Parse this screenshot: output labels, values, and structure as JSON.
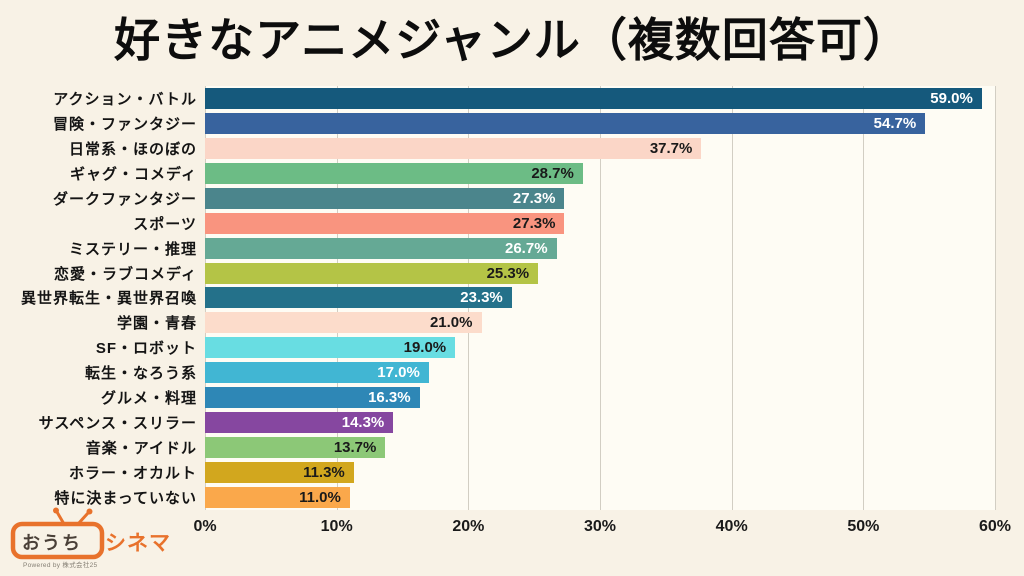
{
  "page": {
    "background": "#f8f2e6",
    "plot_background": "#fefcf4",
    "gridline_color": "#d2cec3"
  },
  "chart_data": {
    "type": "bar",
    "orientation": "horizontal",
    "title": "好きなアニメジャンル（複数回答可）",
    "categories": [
      "アクション・バトル",
      "冒険・ファンタジー",
      "日常系・ほのぼの",
      "ギャグ・コメディ",
      "ダークファンタジー",
      "スポーツ",
      "ミステリー・推理",
      "恋愛・ラブコメディ",
      "異世界転生・異世界召喚",
      "学園・青春",
      "SF・ロボット",
      "転生・なろう系",
      "グルメ・料理",
      "サスペンス・スリラー",
      "音楽・アイドル",
      "ホラー・オカルト",
      "特に決まっていない"
    ],
    "values": [
      59.0,
      54.7,
      37.7,
      28.7,
      27.3,
      27.3,
      26.7,
      25.3,
      23.3,
      21.0,
      19.0,
      17.0,
      16.3,
      14.3,
      13.7,
      11.3,
      11.0
    ],
    "value_labels": [
      "59.0%",
      "54.7%",
      "37.7%",
      "28.7%",
      "27.3%",
      "27.3%",
      "26.7%",
      "25.3%",
      "23.3%",
      "21.0%",
      "19.0%",
      "17.0%",
      "16.3%",
      "14.3%",
      "13.7%",
      "11.3%",
      "11.0%"
    ],
    "bar_colors": [
      "#15597c",
      "#38639e",
      "#fbd6c7",
      "#6cbc85",
      "#4b858c",
      "#f9947f",
      "#65a995",
      "#b4c446",
      "#24718a",
      "#fcdccb",
      "#68dde2",
      "#41b6d3",
      "#2e87b6",
      "#8647a0",
      "#8cc877",
      "#d2a71e",
      "#faa84b"
    ],
    "value_label_colors": [
      "#ffffff",
      "#ffffff",
      "#1a1a1a",
      "#1a1a1a",
      "#ffffff",
      "#1a1a1a",
      "#ffffff",
      "#1a1a1a",
      "#ffffff",
      "#1a1a1a",
      "#1a1a1a",
      "#ffffff",
      "#ffffff",
      "#ffffff",
      "#1a1a1a",
      "#1a1a1a",
      "#1a1a1a"
    ],
    "xlabel": "",
    "ylabel": "",
    "xlim": [
      0,
      60
    ],
    "x_ticks": [
      "0%",
      "10%",
      "20%",
      "30%",
      "40%",
      "50%",
      "60%"
    ],
    "grid": "vertical",
    "legend": "none"
  },
  "logo": {
    "brand_dark": "おうち",
    "brand_orange": "シネマ",
    "powered_by": "Powered by 株式会社25",
    "accent_color": "#e8722c"
  }
}
